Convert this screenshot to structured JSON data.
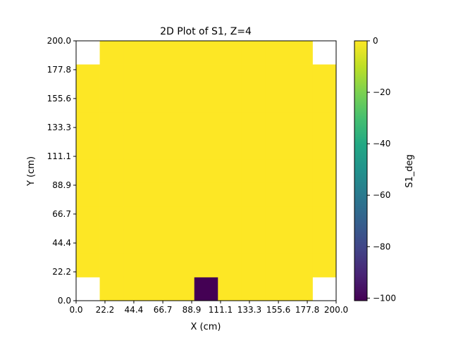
{
  "chart_data": {
    "type": "heatmap",
    "title": "2D Plot of S1, Z=4",
    "xlabel": "X (cm)",
    "ylabel": "Y (cm)",
    "xlim": [
      0,
      200
    ],
    "ylim": [
      0,
      200
    ],
    "x_ticks": [
      0.0,
      22.2,
      44.4,
      66.7,
      88.9,
      111.1,
      133.3,
      155.6,
      177.8,
      200.0
    ],
    "x_tick_labels": [
      "0.0",
      "22.2",
      "44.4",
      "66.7",
      "88.9",
      "111.1",
      "133.3",
      "155.6",
      "177.8",
      "200.0"
    ],
    "y_ticks": [
      0.0,
      22.2,
      44.4,
      66.7,
      88.9,
      111.1,
      133.3,
      155.6,
      177.8,
      200.0
    ],
    "y_tick_labels": [
      "0.0",
      "22.2",
      "44.4",
      "66.7",
      "88.9",
      "111.1",
      "133.3",
      "155.6",
      "177.8",
      "200.0"
    ],
    "grid": false,
    "colormap": "viridis",
    "colorbar": {
      "label": "S1_deg",
      "vmin": -101,
      "vmax": 0,
      "ticks": [
        0,
        -20,
        -40,
        -60,
        -80,
        -100
      ],
      "tick_labels": [
        "0",
        "−20",
        "−40",
        "−60",
        "−80",
        "−100"
      ]
    },
    "cell_edges_x": [
      0,
      18.18,
      36.36,
      54.55,
      72.73,
      90.91,
      109.09,
      127.27,
      145.45,
      163.64,
      181.82,
      200
    ],
    "cell_edges_y": [
      0,
      18.18,
      36.36,
      54.55,
      72.73,
      90.91,
      109.09,
      127.27,
      145.45,
      163.64,
      181.82,
      200
    ],
    "values_rows_bottom_to_top": [
      [
        null,
        0,
        0,
        0,
        0,
        -101,
        0,
        0,
        0,
        0,
        null
      ],
      [
        0,
        0,
        0,
        0,
        0,
        0,
        0,
        0,
        0,
        0,
        0
      ],
      [
        0,
        0,
        0,
        0,
        0,
        0,
        0,
        0,
        0,
        0,
        0
      ],
      [
        0,
        0,
        0,
        0,
        0,
        0,
        0,
        0,
        0,
        0,
        0
      ],
      [
        0,
        0,
        0,
        0,
        0,
        0,
        0,
        0,
        0,
        0,
        0
      ],
      [
        0,
        0,
        0,
        0,
        0,
        0,
        0,
        0,
        0,
        0,
        0
      ],
      [
        0,
        0,
        0,
        0,
        0,
        0,
        0,
        0,
        0,
        0,
        0
      ],
      [
        0,
        0,
        0,
        0,
        0,
        0,
        0,
        0,
        0,
        0,
        0
      ],
      [
        0,
        0,
        0,
        0,
        0,
        0,
        0,
        0,
        0,
        0,
        0
      ],
      [
        0,
        0,
        0,
        0,
        0,
        0,
        0,
        0,
        0,
        0,
        0
      ],
      [
        null,
        0,
        0,
        0,
        0,
        0,
        0,
        0,
        0,
        0,
        null
      ]
    ]
  }
}
